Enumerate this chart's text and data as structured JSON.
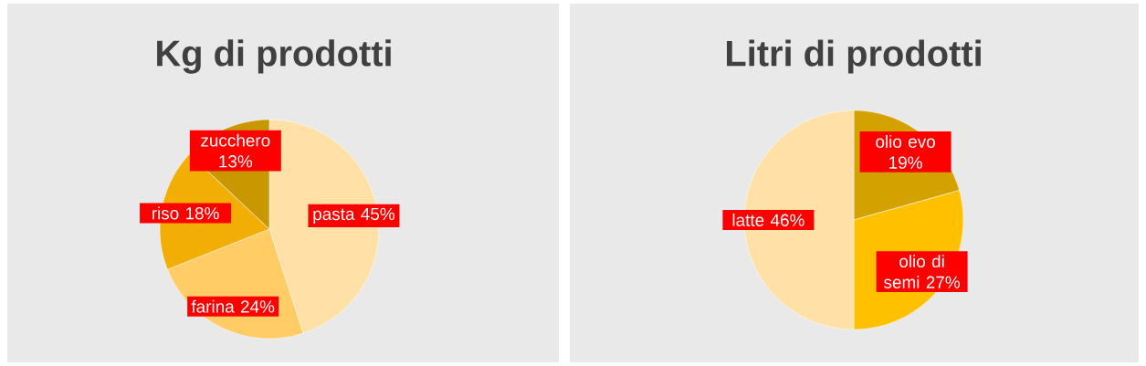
{
  "chart_data": [
    {
      "type": "pie",
      "title": "Kg di prodotti",
      "categories": [
        "pasta",
        "farina",
        "riso",
        "zucchero"
      ],
      "values": [
        45,
        24,
        18,
        13
      ],
      "colors": [
        "#ffe0a6",
        "#ffcc66",
        "#f2ae05",
        "#c99800"
      ],
      "value_labels": [
        "45%",
        "24%",
        "18%",
        "13%"
      ]
    },
    {
      "type": "pie",
      "title": "Litri di prodotti",
      "categories": [
        "olio evo",
        "olio di semi",
        "latte"
      ],
      "values": [
        19,
        27,
        46
      ],
      "colors": [
        "#d4a200",
        "#ffc000",
        "#ffe0a6"
      ],
      "value_labels": [
        "19%",
        "27%",
        "46%"
      ]
    }
  ]
}
